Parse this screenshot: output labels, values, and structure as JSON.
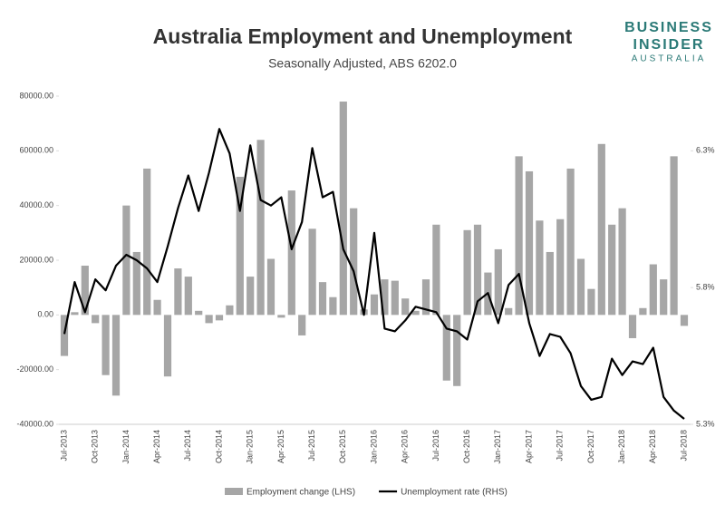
{
  "chart_data": {
    "type": "bar_line",
    "title": "Australia Employment and Unemployment",
    "subtitle": "Seasonally Adjusted, ABS 6202.0",
    "logo": [
      "BUSINESS",
      "INSIDER",
      "AUSTRALIA"
    ],
    "categories": [
      "Jul-2013",
      null,
      null,
      "Oct-2013",
      null,
      null,
      "Jan-2014",
      null,
      null,
      "Apr-2014",
      null,
      null,
      "Jul-2014",
      null,
      null,
      "Oct-2014",
      null,
      null,
      "Jan-2015",
      null,
      null,
      "Apr-2015",
      null,
      null,
      "Jul-2015",
      null,
      null,
      "Oct-2015",
      null,
      null,
      "Jan-2016",
      null,
      null,
      "Apr-2016",
      null,
      null,
      "Jul-2016",
      null,
      null,
      "Oct-2016",
      null,
      null,
      "Jan-2017",
      null,
      null,
      "Apr-2017",
      null,
      null,
      "Jul-2017",
      null,
      null,
      "Oct-2017",
      null,
      null,
      "Jan-2018",
      null,
      null,
      "Apr-2018",
      null,
      null,
      "Jul-2018"
    ],
    "series": [
      {
        "name": "Employment change (LHS)",
        "color": "#a6a6a6",
        "kind": "bar",
        "values": [
          -15000,
          1000,
          18000,
          -3000,
          -22000,
          -29500,
          40000,
          23000,
          53500,
          5500,
          -22500,
          17000,
          14000,
          1500,
          -3000,
          -2000,
          3500,
          50500,
          14000,
          64000,
          20500,
          -1000,
          45500,
          -7500,
          31500,
          12000,
          6500,
          78000,
          39000,
          2000,
          7500,
          13000,
          12500,
          6000,
          1500,
          13000,
          33000,
          -24000,
          -26000,
          31000,
          33000,
          15500,
          24000,
          2500,
          58000,
          52500,
          34500,
          23000,
          35000,
          53500,
          20500,
          9500,
          62500,
          33000,
          39000,
          -8500,
          2500,
          18500,
          13000,
          58000,
          -4000
        ]
      },
      {
        "name": "Unemployment rate (RHS)",
        "color": "#000000",
        "kind": "line",
        "axis": "y2",
        "values": [
          5.63,
          5.82,
          5.71,
          5.83,
          5.79,
          5.88,
          5.92,
          5.9,
          5.87,
          5.82,
          5.95,
          6.09,
          6.21,
          6.08,
          6.22,
          6.38,
          6.29,
          6.08,
          6.32,
          6.12,
          6.1,
          6.13,
          5.94,
          6.04,
          6.31,
          6.13,
          6.15,
          5.94,
          5.86,
          5.7,
          6.0,
          5.65,
          5.64,
          5.68,
          5.73,
          5.72,
          5.71,
          5.65,
          5.64,
          5.61,
          5.75,
          5.78,
          5.67,
          5.81,
          5.85,
          5.67,
          5.55,
          5.63,
          5.62,
          5.56,
          5.44,
          5.39,
          5.4,
          5.54,
          5.48,
          5.53,
          5.52,
          5.58,
          5.4,
          5.35,
          5.32
        ]
      }
    ],
    "ylim": [
      -40000,
      80000
    ],
    "yticks": [
      {
        "value": -40000,
        "label": "-40000.00"
      },
      {
        "value": -20000,
        "label": "-20000.00"
      },
      {
        "value": 0,
        "label": "0.00"
      },
      {
        "value": 20000,
        "label": "20000.00"
      },
      {
        "value": 40000,
        "label": "40000.00"
      },
      {
        "value": 60000,
        "label": "60000.00"
      },
      {
        "value": 80000,
        "label": "80000.00"
      }
    ],
    "y2lim": [
      5.3,
      6.5
    ],
    "y2ticks": [
      {
        "value": 5.3,
        "label": "5.3%"
      },
      {
        "value": 5.8,
        "label": "5.8%"
      },
      {
        "value": 6.3,
        "label": "6.3%"
      }
    ],
    "grid": false,
    "legend": "bottom"
  }
}
